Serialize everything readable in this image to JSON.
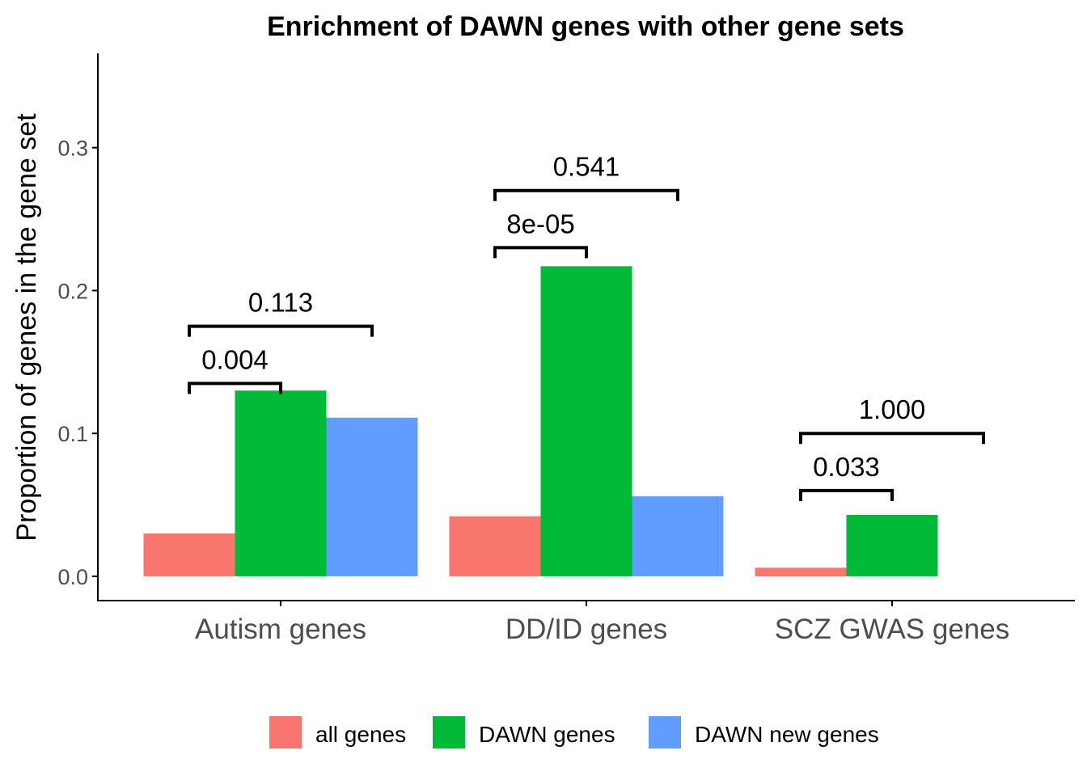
{
  "colors": {
    "all_genes": "#F8766D",
    "dawn_genes": "#00BA38",
    "dawn_new_genes": "#619CFF",
    "axis": "#000000",
    "tick_text": "#4d4d4d"
  },
  "chart_data": {
    "type": "bar",
    "title": "Enrichment of DAWN genes with other gene sets",
    "xlabel": "",
    "ylabel": "Proportion of genes in the gene set",
    "ylim": [
      -0.017,
      0.366
    ],
    "yticks": [
      0.0,
      0.1,
      0.2,
      0.3
    ],
    "ytick_labels": [
      "0.0",
      "0.1",
      "0.2",
      "0.3"
    ],
    "grid": false,
    "legend_position": "bottom",
    "categories": [
      "Autism genes",
      "DD/ID genes",
      "SCZ GWAS genes"
    ],
    "series": [
      {
        "name": "all genes",
        "color_key": "all_genes",
        "values": [
          0.03,
          0.042,
          0.006
        ]
      },
      {
        "name": "DAWN genes",
        "color_key": "dawn_genes",
        "values": [
          0.13,
          0.217,
          0.043
        ]
      },
      {
        "name": "DAWN new genes",
        "color_key": "dawn_new_genes",
        "values": [
          0.111,
          0.056,
          0
        ]
      }
    ],
    "annotations": [
      {
        "category": 0,
        "from": 0,
        "to": 1,
        "y": 0.135,
        "label": "0.004"
      },
      {
        "category": 0,
        "from": 0,
        "to": 2,
        "y": 0.175,
        "label": "0.113"
      },
      {
        "category": 1,
        "from": 0,
        "to": 1,
        "y": 0.23,
        "label": "8e-05"
      },
      {
        "category": 1,
        "from": 0,
        "to": 2,
        "y": 0.27,
        "label": "0.541"
      },
      {
        "category": 2,
        "from": 0,
        "to": 1,
        "y": 0.06,
        "label": "0.033"
      },
      {
        "category": 2,
        "from": 0,
        "to": 2,
        "y": 0.1,
        "label": "1.000"
      }
    ]
  }
}
